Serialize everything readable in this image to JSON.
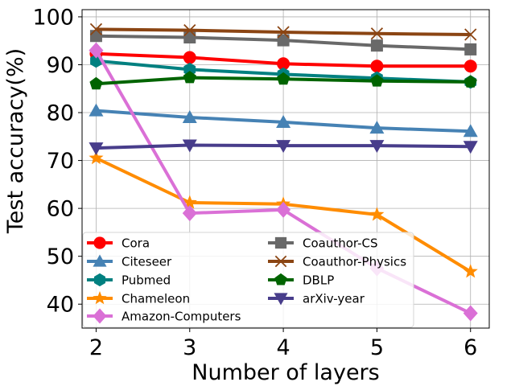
{
  "chart_data": {
    "type": "line",
    "xlabel": "Number of layers",
    "ylabel": "Test accuracy(%)",
    "x": [
      2,
      3,
      4,
      5,
      6
    ],
    "x_ticks": [
      "2",
      "3",
      "4",
      "5",
      "6"
    ],
    "xlim": [
      1.85,
      6.2
    ],
    "ylim": [
      35,
      101.5
    ],
    "y_ticks": [
      40,
      50,
      60,
      70,
      80,
      90,
      100
    ],
    "y_tick_labels": [
      "40",
      "50",
      "60",
      "70",
      "80",
      "90",
      "100"
    ],
    "grid": true,
    "legend_position": "lower-left",
    "series": [
      {
        "name": "Cora",
        "color": "#ff0000",
        "marker": "circle",
        "values": [
          92.3,
          91.5,
          90.2,
          89.7,
          89.7
        ]
      },
      {
        "name": "Citeseer",
        "color": "#4682b4",
        "marker": "triangle-up",
        "values": [
          80.4,
          79.0,
          78.0,
          76.8,
          76.1
        ]
      },
      {
        "name": "Pubmed",
        "color": "#008080",
        "marker": "hexagon",
        "values": [
          90.8,
          89.0,
          88.0,
          87.2,
          86.4
        ]
      },
      {
        "name": "Chameleon",
        "color": "#ff8c00",
        "marker": "star",
        "values": [
          70.5,
          61.2,
          60.9,
          58.7,
          46.8
        ]
      },
      {
        "name": "Amazon-Computers",
        "color": "#da70d6",
        "marker": "diamond",
        "values": [
          93.0,
          59.0,
          59.7,
          47.5,
          38.1
        ]
      },
      {
        "name": "Coauthor-CS",
        "color": "#696969",
        "marker": "square",
        "values": [
          96.0,
          95.7,
          95.1,
          94.0,
          93.2
        ]
      },
      {
        "name": "Coauthor-Physics",
        "color": "#8b4513",
        "marker": "x",
        "values": [
          97.4,
          97.2,
          96.8,
          96.5,
          96.3
        ]
      },
      {
        "name": "DBLP",
        "color": "#006400",
        "marker": "pentagon",
        "values": [
          86.0,
          87.3,
          87.0,
          86.6,
          86.4
        ]
      },
      {
        "name": "arXiv-year",
        "color": "#483d8b",
        "marker": "triangle-down",
        "values": [
          72.6,
          73.2,
          73.1,
          73.1,
          72.9
        ]
      }
    ]
  }
}
